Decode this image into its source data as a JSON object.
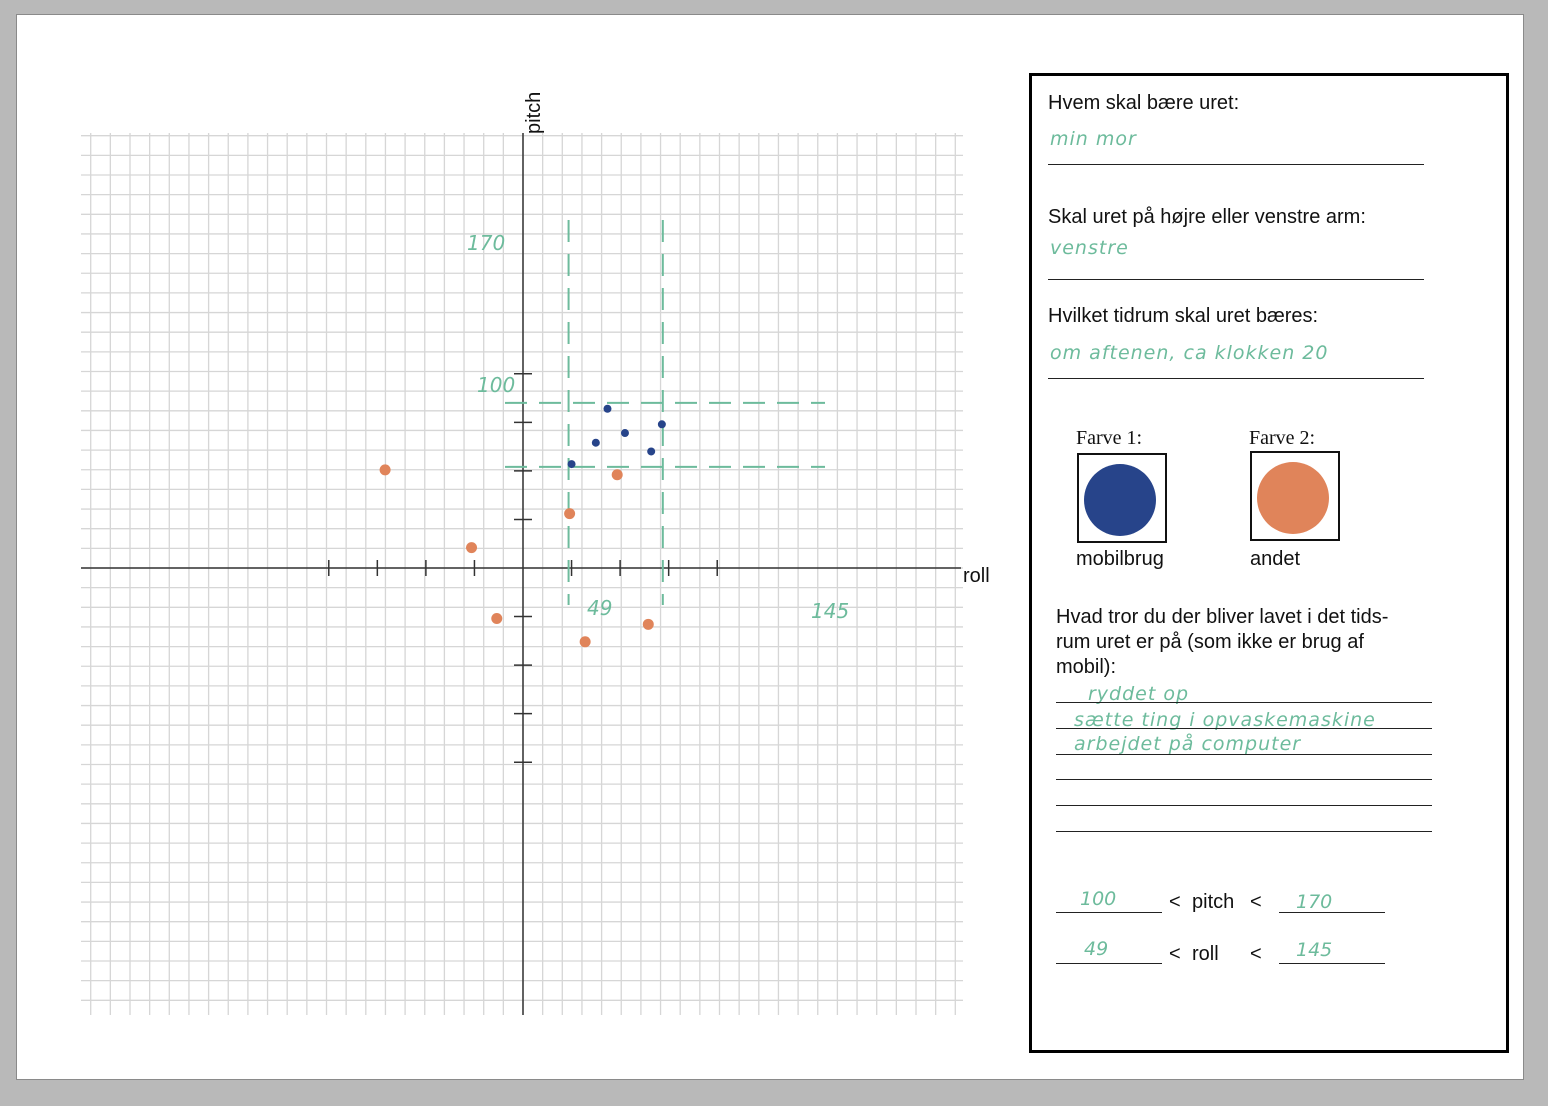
{
  "colors": {
    "grid": "#d6d6d6",
    "axis": "#333333",
    "handwriting": "#6dbb9c",
    "farve1": "#27448a",
    "farve2": "#e0845a"
  },
  "chart_data": {
    "type": "scatter",
    "xlabel": "roll",
    "ylabel": "pitch",
    "xlim": [
      -230,
      230
    ],
    "ylim": [
      -230,
      230
    ],
    "grid": true,
    "series": [
      {
        "name": "mobilbrug",
        "color_ref": "farve1",
        "points": [
          {
            "x": 50,
            "y": 107
          },
          {
            "x": 75,
            "y": 129
          },
          {
            "x": 87,
            "y": 164
          },
          {
            "x": 105,
            "y": 139
          },
          {
            "x": 132,
            "y": 120
          },
          {
            "x": 143,
            "y": 148
          }
        ]
      },
      {
        "name": "andet",
        "color_ref": "farve2",
        "points": [
          {
            "x": -142,
            "y": 101
          },
          {
            "x": -53,
            "y": 21
          },
          {
            "x": -27,
            "y": -52
          },
          {
            "x": 48,
            "y": 56
          },
          {
            "x": 64,
            "y": -76
          },
          {
            "x": 97,
            "y": 96
          },
          {
            "x": 129,
            "y": -58
          }
        ]
      }
    ],
    "annotations": {
      "pitch_lower": "100",
      "pitch_upper": "170",
      "roll_lower": "49",
      "roll_upper": "145",
      "bounds": {
        "roll_min": 49,
        "roll_max": 145,
        "pitch_min": 100,
        "pitch_max": 170
      }
    }
  },
  "form": {
    "q1": "Hvem skal bære uret:",
    "a1": "min mor",
    "q2": "Skal uret på højre eller venstre arm:",
    "a2": "venstre",
    "q3": "Hvilket tidrum skal uret bæres:",
    "a3": "om aftenen, ca klokken 20",
    "farve1_label": "Farve 1:",
    "farve2_label": "Farve 2:",
    "farve1_caption": "mobilbrug",
    "farve2_caption": "andet",
    "q4_line1": "Hvad tror du der bliver lavet i det tids-",
    "q4_line2": "rum uret er på (som ikke er brug af",
    "q4_line3": "mobil):",
    "a4": [
      "ryddet op",
      "sætte ting i opvaskemaskine",
      "arbejdet på computer"
    ],
    "ineq": {
      "pitch_low": "100",
      "pitch_label": "pitch",
      "pitch_high": "170",
      "roll_low": "49",
      "roll_label": "roll",
      "roll_high": "145",
      "lt": "<"
    }
  }
}
